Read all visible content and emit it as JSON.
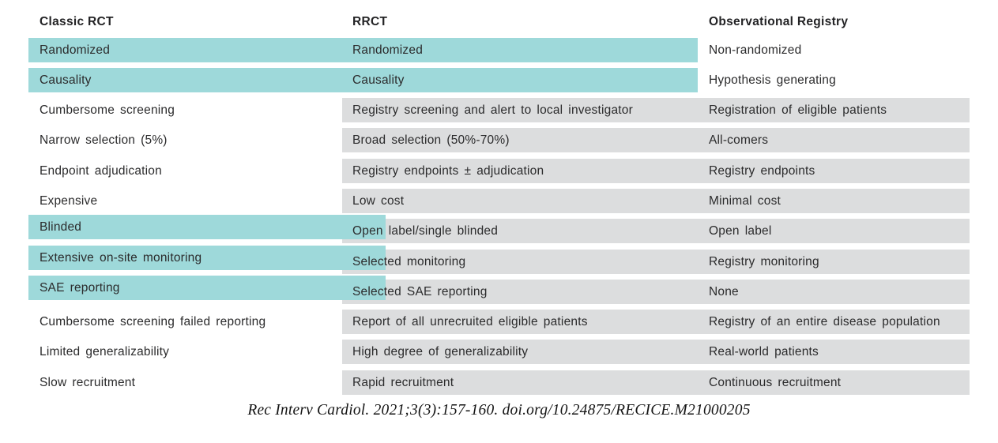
{
  "table": {
    "headers": [
      "Classic RCT",
      "RRCT",
      "Observational Registry"
    ],
    "rows": [
      {
        "classic": "Randomized",
        "rrct": "Randomized",
        "registry": "Non-randomized",
        "highlight": "teal-span-2cols"
      },
      {
        "classic": "Causality",
        "rrct": "Causality",
        "registry": "Hypothesis generating",
        "highlight": "teal-span-2cols"
      },
      {
        "classic": "Cumbersome screening",
        "rrct": "Registry screening and alert to local investigator",
        "registry": "Registration of eligible patients",
        "highlight": "gray"
      },
      {
        "classic": "Narrow selection (5%)",
        "rrct": "Broad selection (50%-70%)",
        "registry": "All-comers",
        "highlight": "gray"
      },
      {
        "classic": "Endpoint adjudication",
        "rrct": "Registry endpoints ± adjudication",
        "registry": "Registry endpoints",
        "highlight": "gray"
      },
      {
        "classic": "Expensive",
        "rrct": "Low cost",
        "registry": "Minimal cost",
        "highlight": "gray"
      },
      {
        "classic": "Blinded",
        "rrct": "Open label/single blinded",
        "registry": "Open label",
        "highlight": "teal-col1-overlay"
      },
      {
        "classic": "Extensive on-site monitoring",
        "rrct": "Selected monitoring",
        "registry": "Registry monitoring",
        "highlight": "teal-col1-overlay"
      },
      {
        "classic": "SAE reporting",
        "rrct": "Selected SAE reporting",
        "registry": "None",
        "highlight": "teal-col1-overlay"
      },
      {
        "classic": "Cumbersome screening failed reporting",
        "rrct": "Report of all unrecruited eligible patients",
        "registry": "Registry of an entire disease population",
        "highlight": "gray"
      },
      {
        "classic": "Limited generalizability",
        "rrct": "High degree of generalizability",
        "registry": "Real-world patients",
        "highlight": "gray"
      },
      {
        "classic": "Slow recruitment",
        "rrct": "Rapid recruitment",
        "registry": "Continuous recruitment",
        "highlight": "gray"
      }
    ]
  },
  "citation": "Rec Interv Cardiol. 2021;3(3):157-160. doi.org/10.24875/RECICE.M21000205",
  "colors": {
    "highlight_teal": "#9ed9da",
    "row_gray": "#dcddde",
    "text_dark": "#2b2b2c"
  }
}
